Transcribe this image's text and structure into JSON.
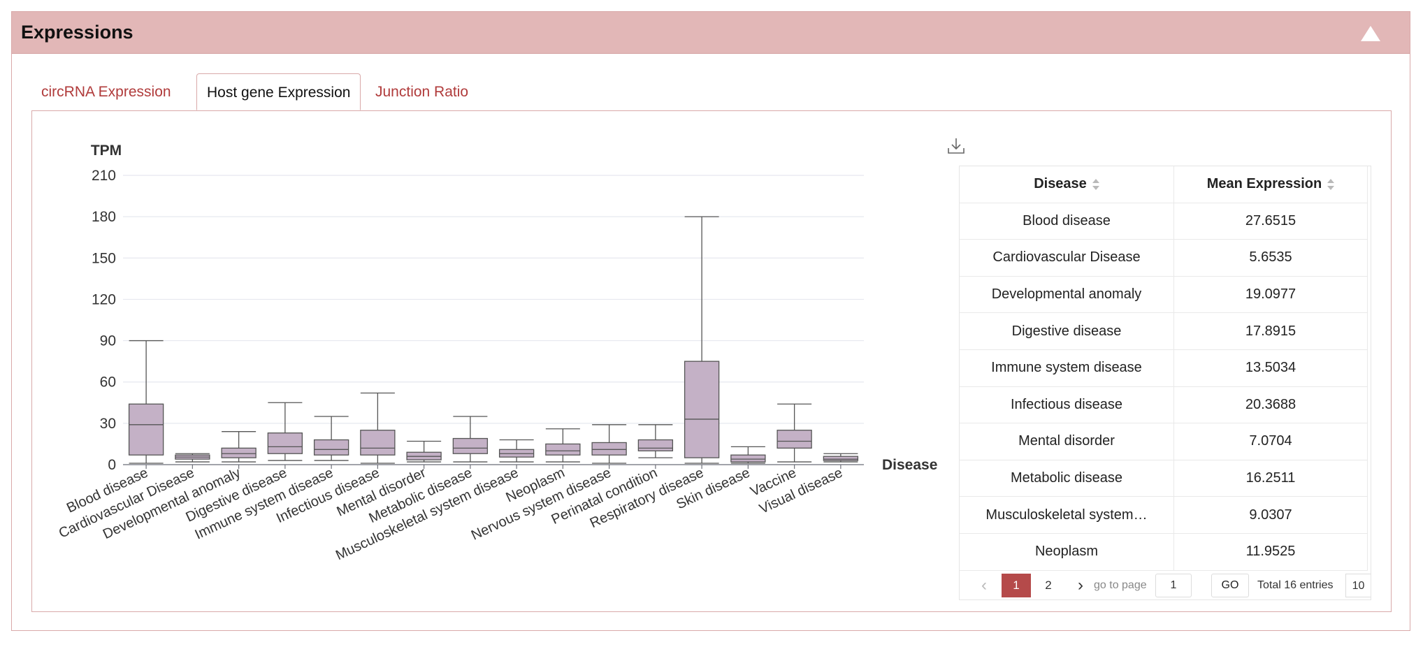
{
  "panel": {
    "title": "Expressions"
  },
  "tabs": [
    {
      "label": "circRNA Expression",
      "active": false
    },
    {
      "label": "Host gene Expression",
      "active": true
    },
    {
      "label": "Junction Ratio",
      "active": false
    }
  ],
  "chart_data": {
    "type": "boxplot",
    "ylabel": "TPM",
    "xlabel": "Disease",
    "ylim": [
      0,
      210
    ],
    "yticks": [
      0,
      30,
      60,
      90,
      120,
      150,
      180,
      210
    ],
    "grid": true,
    "box_color": "#c4b1c6",
    "categories": [
      "Blood disease",
      "Cardiovascular Disease",
      "Developmental anomaly",
      "Digestive disease",
      "Immune system disease",
      "Infectious disease",
      "Mental disorder",
      "Metabolic disease",
      "Musculoskeletal system disease",
      "Neoplasm",
      "Nervous system disease",
      "Perinatal condition",
      "Respiratory disease",
      "Skin disease",
      "Vaccine",
      "Visual disease"
    ],
    "boxes": [
      {
        "min": 1,
        "q1": 7,
        "median": 29,
        "q3": 44,
        "max": 90
      },
      {
        "min": 2,
        "q1": 4,
        "median": 5.5,
        "q3": 7,
        "max": 8
      },
      {
        "min": 2,
        "q1": 5,
        "median": 8,
        "q3": 12,
        "max": 24
      },
      {
        "min": 3,
        "q1": 8,
        "median": 13,
        "q3": 23,
        "max": 45
      },
      {
        "min": 3,
        "q1": 7,
        "median": 11,
        "q3": 18,
        "max": 35
      },
      {
        "min": 1,
        "q1": 7,
        "median": 12,
        "q3": 25,
        "max": 52
      },
      {
        "min": 2,
        "q1": 3.5,
        "median": 6,
        "q3": 9,
        "max": 17
      },
      {
        "min": 2,
        "q1": 8,
        "median": 12,
        "q3": 19,
        "max": 35
      },
      {
        "min": 2,
        "q1": 5.5,
        "median": 8,
        "q3": 11,
        "max": 18
      },
      {
        "min": 2,
        "q1": 7,
        "median": 10,
        "q3": 15,
        "max": 26
      },
      {
        "min": 1,
        "q1": 7,
        "median": 11,
        "q3": 16,
        "max": 29
      },
      {
        "min": 5,
        "q1": 10,
        "median": 12,
        "q3": 18,
        "max": 29
      },
      {
        "min": 1,
        "q1": 5,
        "median": 33,
        "q3": 75,
        "max": 180
      },
      {
        "min": 1,
        "q1": 2,
        "median": 4,
        "q3": 7,
        "max": 13
      },
      {
        "min": 2,
        "q1": 12,
        "median": 17,
        "q3": 25,
        "max": 44
      },
      {
        "min": 2,
        "q1": 3,
        "median": 4,
        "q3": 6,
        "max": 8
      }
    ]
  },
  "table": {
    "columns": [
      "Disease",
      "Mean Expression"
    ],
    "rows": [
      [
        "Blood disease",
        "27.6515"
      ],
      [
        "Cardiovascular Disease",
        "5.6535"
      ],
      [
        "Developmental anomaly",
        "19.0977"
      ],
      [
        "Digestive disease",
        "17.8915"
      ],
      [
        "Immune system disease",
        "13.5034"
      ],
      [
        "Infectious disease",
        "20.3688"
      ],
      [
        "Mental disorder",
        "7.0704"
      ],
      [
        "Metabolic disease",
        "16.2511"
      ],
      [
        "Musculoskeletal system…",
        "9.0307"
      ],
      [
        "Neoplasm",
        "11.9525"
      ]
    ]
  },
  "pagination": {
    "pages": [
      "1",
      "2"
    ],
    "current": "1",
    "goto_label": "go to page",
    "goto_value": "1",
    "go_label": "GO",
    "total_label": "Total 16 entries",
    "page_size": "10"
  },
  "icons": {
    "collapse": "caret-up-icon",
    "download": "download-icon",
    "sort": "sort-icon",
    "prev": "chevron-left-icon",
    "next": "chevron-right-icon"
  },
  "colors": {
    "header_bg": "#e2b7b7",
    "tab_link": "#b03b3b",
    "page_active": "#b54a4a",
    "box_fill": "#c4b1c6"
  }
}
